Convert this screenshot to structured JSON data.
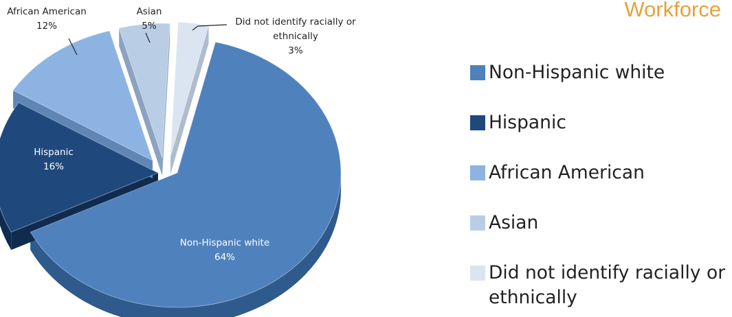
{
  "header": {
    "title": "Workforce"
  },
  "colors": {
    "title": "#e8a13c",
    "slice_fills": [
      "#4f81bd",
      "#1f497d",
      "#8db3e2",
      "#b9cde5",
      "#dbe5f1"
    ],
    "slice_sides": [
      "#2e5a8c",
      "#0f2b4f",
      "#5f86b5",
      "#8aa3c2",
      "#aebccd"
    ]
  },
  "chart_data": {
    "type": "pie",
    "title": "",
    "slices": [
      {
        "name": "Non-Hispanic white",
        "value": 64,
        "label": "64%"
      },
      {
        "name": "Hispanic",
        "value": 16,
        "label": "16%"
      },
      {
        "name": "African American",
        "value": 12,
        "label": "12%"
      },
      {
        "name": "Asian",
        "value": 5,
        "label": "5%"
      },
      {
        "name": "Did not identify racially or ethnically",
        "value": 3,
        "label": "3%"
      }
    ],
    "data_label_lines": [
      [
        "Non-Hispanic white",
        "64%"
      ],
      [
        "Hispanic",
        "16%"
      ],
      [
        "African American",
        "12%"
      ],
      [
        "Asian",
        "5%"
      ],
      [
        "Did not identify racially or",
        "ethnically",
        "3%"
      ]
    ],
    "exploded": true,
    "three_d": true,
    "legend_position": "right"
  },
  "legend": {
    "items": [
      "Non-Hispanic white",
      "Hispanic",
      "African American",
      "Asian",
      "Did not identify racially or ethnically"
    ]
  }
}
